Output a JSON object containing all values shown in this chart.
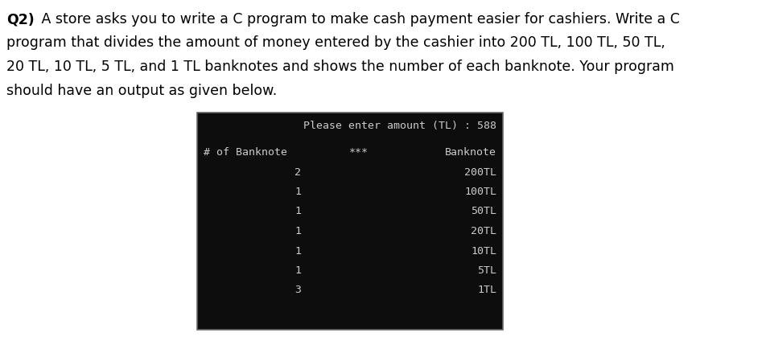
{
  "background_color": "#ffffff",
  "question_bold": "Q2)",
  "question_lines": [
    " A store asks you to write a C program to make cash payment easier for cashiers. Write a C",
    "program that divides the amount of money entered by the cashier into 200 TL, 100 TL, 50 TL,",
    "20 TL, 10 TL, 5 TL, and 1 TL banknotes and shows the number of each banknote. Your program",
    "should have an output as given below."
  ],
  "terminal_bg": "#0d0d0d",
  "terminal_border": "#666666",
  "terminal_text_color": "#cccccc",
  "terminal_font_size": 9.5,
  "prompt_line": "Please enter amount (TL) : 588",
  "header_count": "# of Banknote",
  "header_sep": "***",
  "header_banknote": "Banknote",
  "data_rows": [
    {
      "count": "2",
      "banknote": "200TL"
    },
    {
      "count": "1",
      "banknote": "100TL"
    },
    {
      "count": "1",
      "banknote": "50TL"
    },
    {
      "count": "1",
      "banknote": "20TL"
    },
    {
      "count": "1",
      "banknote": "10TL"
    },
    {
      "count": "1",
      "banknote": "5TL"
    },
    {
      "count": "3",
      "banknote": "1TL"
    }
  ],
  "question_font_size": 12.5,
  "fig_width": 9.52,
  "fig_height": 4.29,
  "fig_dpi": 100
}
